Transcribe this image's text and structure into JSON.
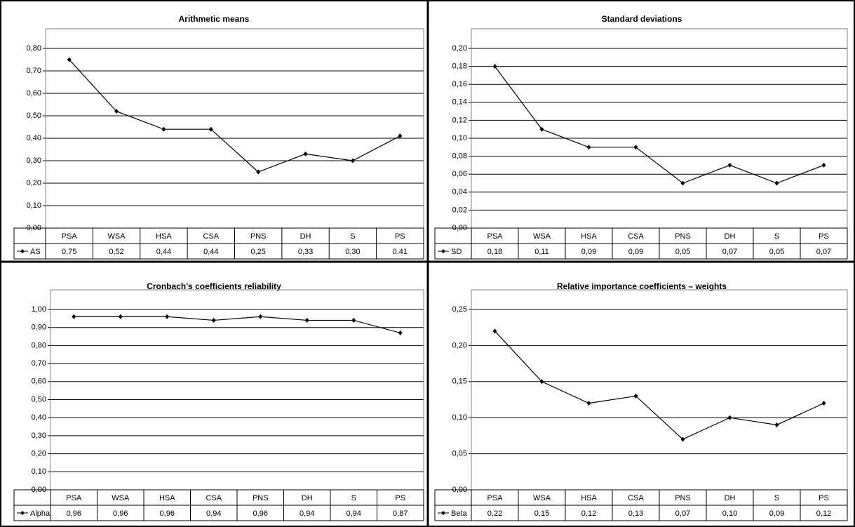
{
  "chart_data": [
    {
      "type": "line",
      "title": "Arithmetic means",
      "categories": [
        "PSA",
        "WSA",
        "HSA",
        "CSA",
        "PNS",
        "DH",
        "S",
        "PS"
      ],
      "series": [
        {
          "name": "AS",
          "color": "#000000",
          "values": [
            0.75,
            0.52,
            0.44,
            0.44,
            0.25,
            0.33,
            0.3,
            0.41
          ],
          "value_labels": [
            "0,75",
            "0,52",
            "0,44",
            "0,44",
            "0,25",
            "0,33",
            "0,30",
            "0,41"
          ]
        }
      ],
      "ylim": [
        0,
        0.8
      ],
      "grid": true,
      "yticks": [
        {
          "value": 0,
          "label": "0,00"
        },
        {
          "value": 0.1,
          "label": "0,10"
        },
        {
          "value": 0.2,
          "label": "0,20"
        },
        {
          "value": 0.3,
          "label": "0,30"
        },
        {
          "value": 0.4,
          "label": "0,40"
        },
        {
          "value": 0.5,
          "label": "0,50"
        },
        {
          "value": 0.6,
          "label": "0,60"
        },
        {
          "value": 0.7,
          "label": "0,70"
        },
        {
          "value": 0.8,
          "label": "0,80"
        }
      ]
    },
    {
      "type": "line",
      "title": "Standard deviations",
      "categories": [
        "PSA",
        "WSA",
        "HSA",
        "CSA",
        "PNS",
        "DH",
        "S",
        "PS"
      ],
      "series": [
        {
          "name": "SD",
          "color": "#000000",
          "values": [
            0.18,
            0.11,
            0.09,
            0.09,
            0.05,
            0.07,
            0.05,
            0.07
          ],
          "value_labels": [
            "0,18",
            "0,11",
            "0,09",
            "0,09",
            "0,05",
            "0,07",
            "0,05",
            "0,07"
          ]
        }
      ],
      "ylim": [
        0,
        0.2
      ],
      "grid": true,
      "yticks": [
        {
          "value": 0,
          "label": "0,00"
        },
        {
          "value": 0.02,
          "label": "0,02"
        },
        {
          "value": 0.04,
          "label": "0,04"
        },
        {
          "value": 0.06,
          "label": "0,06"
        },
        {
          "value": 0.08,
          "label": "0,08"
        },
        {
          "value": 0.1,
          "label": "0,10"
        },
        {
          "value": 0.12,
          "label": "0,12"
        },
        {
          "value": 0.14,
          "label": "0,14"
        },
        {
          "value": 0.16,
          "label": "0,16"
        },
        {
          "value": 0.18,
          "label": "0,18"
        },
        {
          "value": 0.2,
          "label": "0,20"
        }
      ]
    },
    {
      "type": "line",
      "title": "Cronbach's coefficients reliability",
      "categories": [
        "PSA",
        "WSA",
        "HSA",
        "CSA",
        "PNS",
        "DH",
        "S",
        "PS"
      ],
      "series": [
        {
          "name": "Alpha",
          "color": "#000000",
          "values": [
            0.96,
            0.96,
            0.96,
            0.94,
            0.96,
            0.94,
            0.94,
            0.87
          ],
          "value_labels": [
            "0,96",
            "0,96",
            "0,96",
            "0,94",
            "0,96",
            "0,94",
            "0,94",
            "0,87"
          ]
        }
      ],
      "ylim": [
        0,
        1
      ],
      "grid": true,
      "yticks": [
        {
          "value": 0,
          "label": "0,00"
        },
        {
          "value": 0.1,
          "label": "0,10"
        },
        {
          "value": 0.2,
          "label": "0,20"
        },
        {
          "value": 0.3,
          "label": "0,30"
        },
        {
          "value": 0.4,
          "label": "0,40"
        },
        {
          "value": 0.5,
          "label": "0,50"
        },
        {
          "value": 0.6,
          "label": "0,60"
        },
        {
          "value": 0.7,
          "label": "0,70"
        },
        {
          "value": 0.8,
          "label": "0,80"
        },
        {
          "value": 0.9,
          "label": "0,90"
        },
        {
          "value": 1,
          "label": "1,00"
        }
      ]
    },
    {
      "type": "line",
      "title": "Relative importance coefficients – weights",
      "categories": [
        "PSA",
        "WSA",
        "HSA",
        "CSA",
        "PNS",
        "DH",
        "S",
        "PS"
      ],
      "series": [
        {
          "name": "Beta",
          "color": "#000000",
          "values": [
            0.22,
            0.15,
            0.12,
            0.13,
            0.07,
            0.1,
            0.09,
            0.12
          ],
          "value_labels": [
            "0,22",
            "0,15",
            "0,12",
            "0,13",
            "0,07",
            "0,10",
            "0,09",
            "0,12"
          ]
        }
      ],
      "ylim": [
        0,
        0.25
      ],
      "grid": true,
      "yticks": [
        {
          "value": 0,
          "label": "0,00"
        },
        {
          "value": 0.05,
          "label": "0,05"
        },
        {
          "value": 0.1,
          "label": "0,10"
        },
        {
          "value": 0.15,
          "label": "0,15"
        },
        {
          "value": 0.2,
          "label": "0,20"
        },
        {
          "value": 0.25,
          "label": "0,25"
        }
      ]
    }
  ]
}
